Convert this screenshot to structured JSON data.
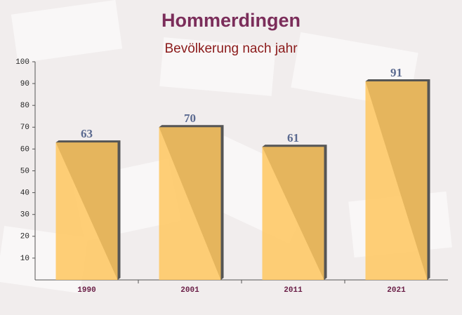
{
  "chart_data": {
    "type": "bar",
    "title": "Hommerdingen",
    "subtitle": "Bevölkerung nach jahr",
    "categories": [
      "1990",
      "2001",
      "2011",
      "2021"
    ],
    "values": [
      63,
      70,
      61,
      91
    ],
    "color": "#ffc75f",
    "ylim": [
      0,
      100
    ],
    "yticks": [
      10,
      20,
      30,
      40,
      50,
      60,
      70,
      80,
      90,
      100
    ],
    "grid": false
  }
}
